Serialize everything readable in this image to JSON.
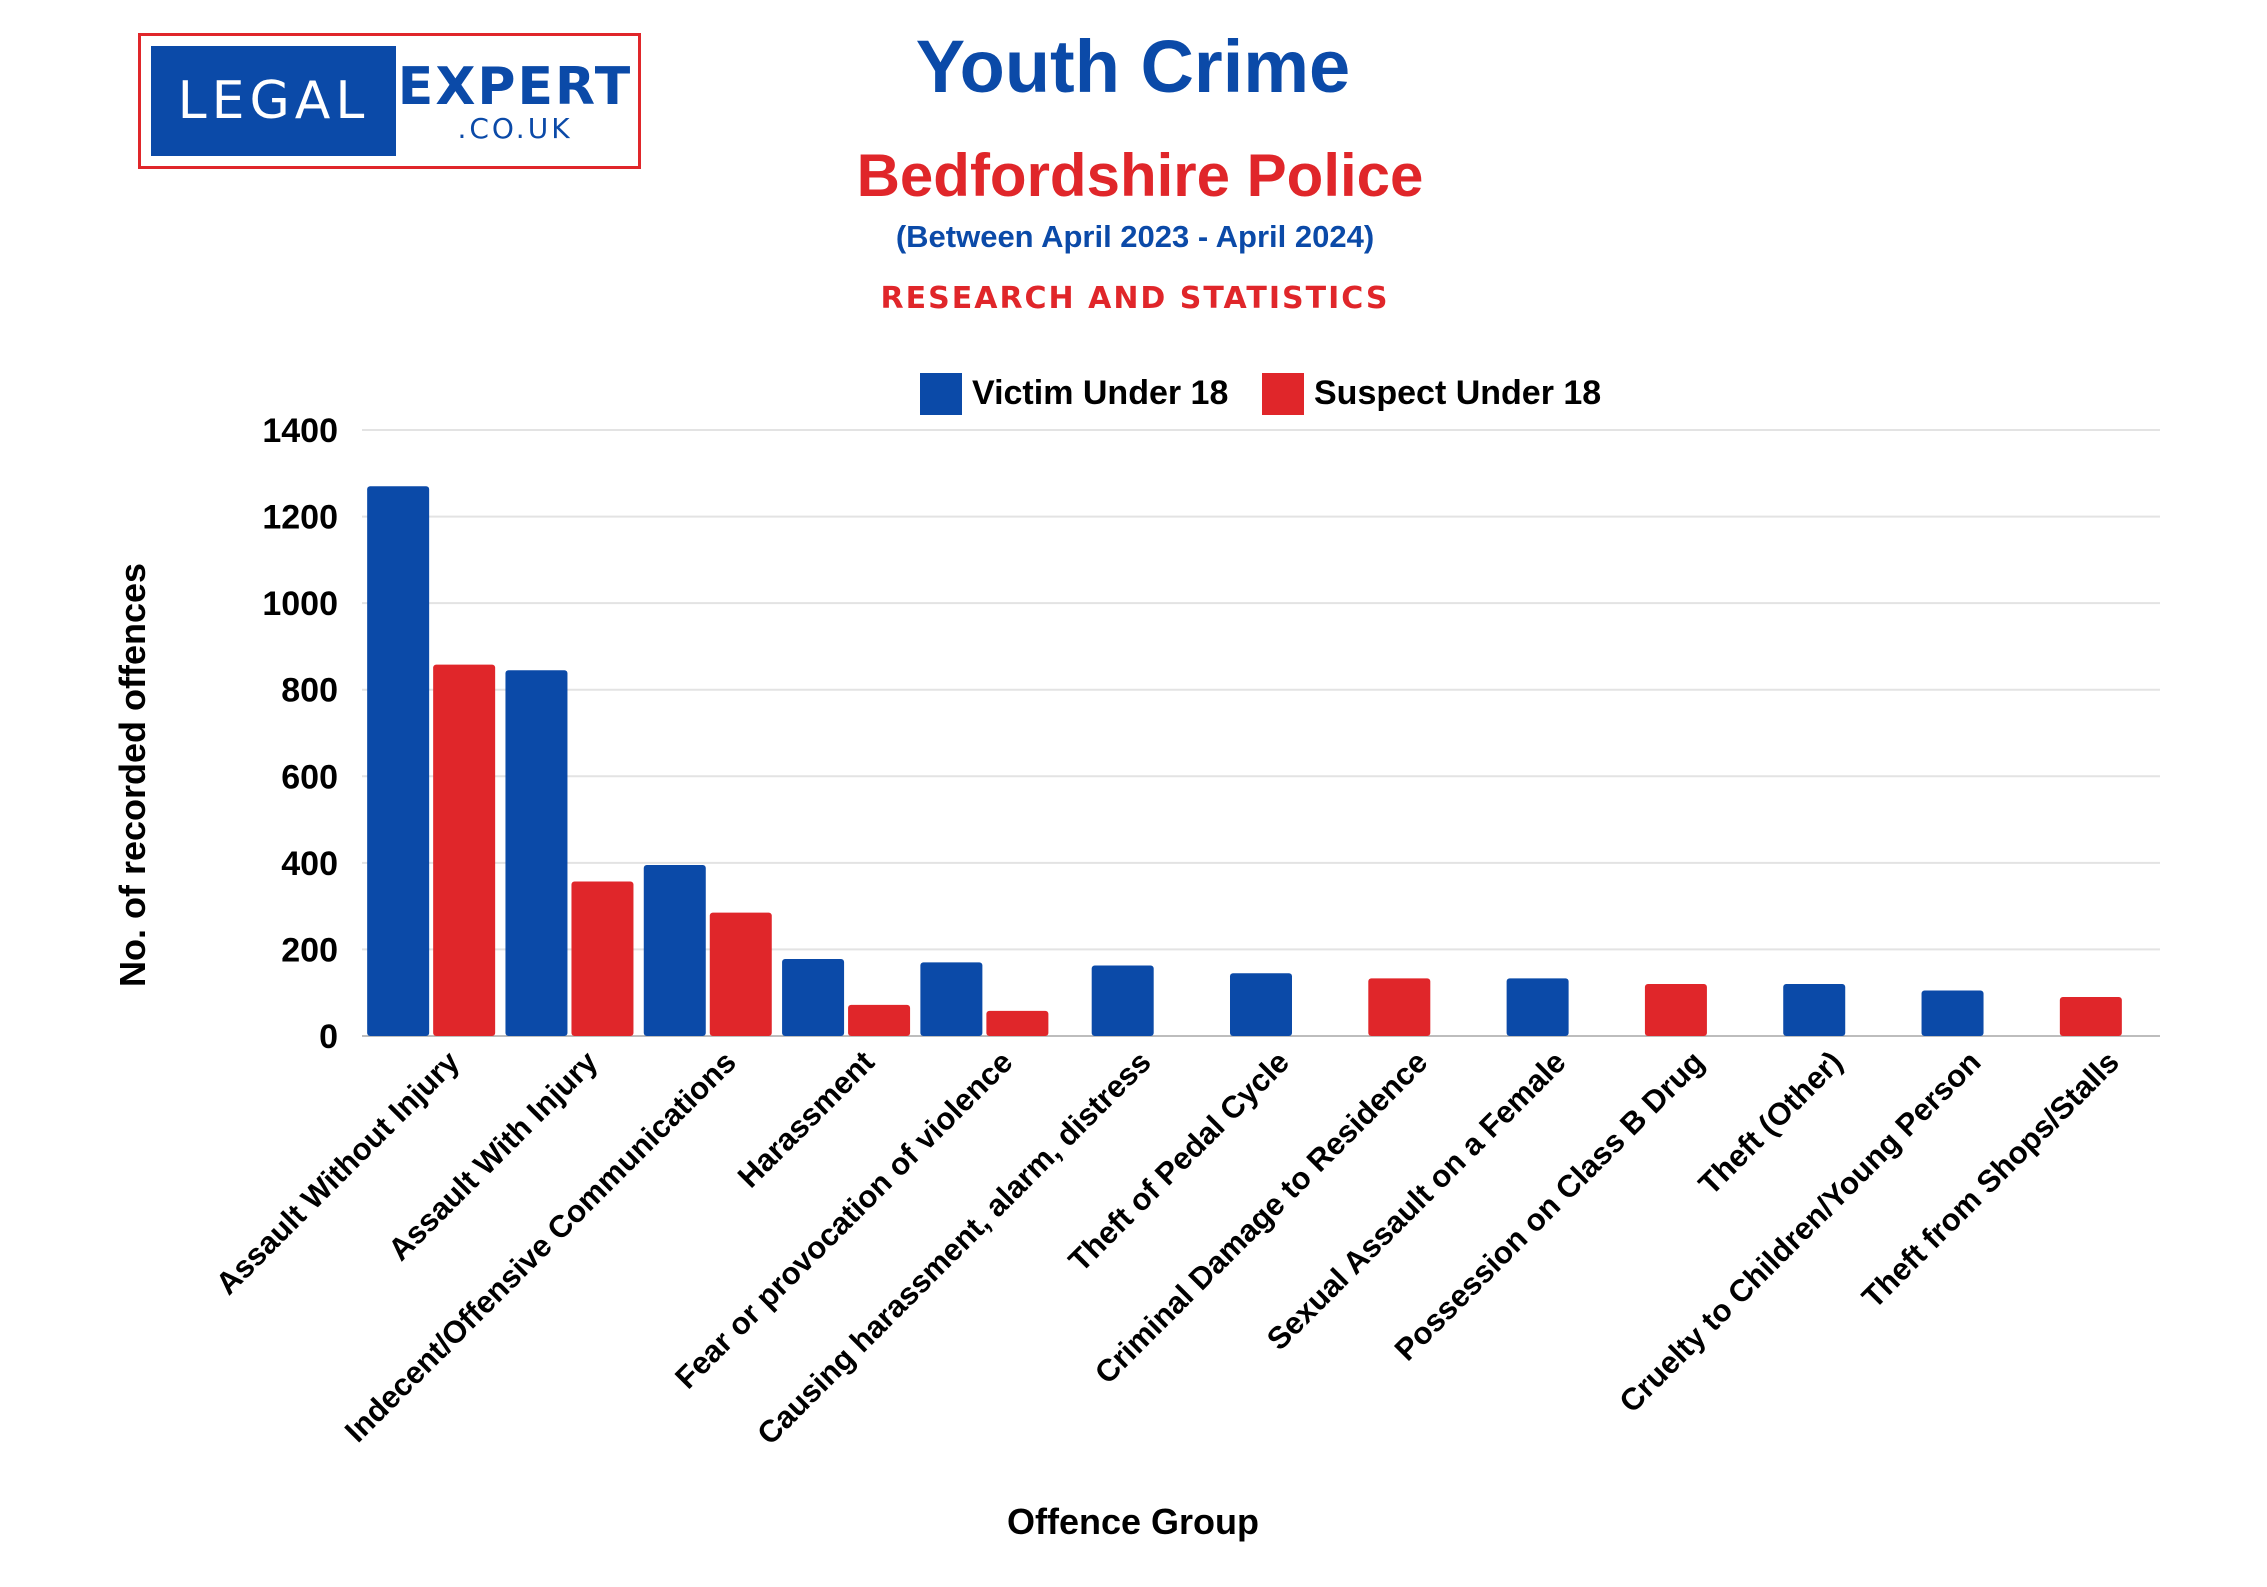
{
  "logo": {
    "left_text": "LEGAL",
    "right_text": "EXPERT",
    "sub_text": ".CO.UK"
  },
  "header": {
    "title": "Youth Crime",
    "subtitle": "Bedfordshire Police",
    "period": "(Between April 2023 - April 2024)",
    "tagline": "RESEARCH AND STATISTICS"
  },
  "colors": {
    "title": "#0b4aa8",
    "accent": "#e0262a",
    "victim": "#0b4aa8",
    "suspect": "#e0262a"
  },
  "chart_data": {
    "type": "bar",
    "title": "Youth Crime",
    "xlabel": "Offence Group",
    "ylabel": "No. of recorded offences",
    "ylim": [
      0,
      1400
    ],
    "yticks": [
      0,
      200,
      400,
      600,
      800,
      1000,
      1200,
      1400
    ],
    "legend_position": "top-center",
    "categories": [
      "Assault Without Injury",
      "Assault With Injury",
      "Indecent/Offensive Communications",
      "Harassment",
      "Fear or provocation of violence",
      "Causing harassment, alarm, distress",
      "Theft of Pedal Cycle",
      "Criminal Damage to Residence",
      "Sexual Assault on a Female",
      "Possession on Class B Drug",
      "Theft (Other)",
      "Cruelty to Children/Young Person",
      "Theft from Shops/Stalls"
    ],
    "series": [
      {
        "name": "Victim Under 18",
        "color": "#0b4aa8",
        "values": [
          1270,
          845,
          395,
          178,
          170,
          163,
          145,
          null,
          133,
          null,
          120,
          105,
          null
        ]
      },
      {
        "name": "Suspect Under 18",
        "color": "#e0262a",
        "values": [
          858,
          357,
          285,
          72,
          58,
          null,
          null,
          133,
          null,
          120,
          null,
          null,
          90
        ]
      }
    ]
  }
}
